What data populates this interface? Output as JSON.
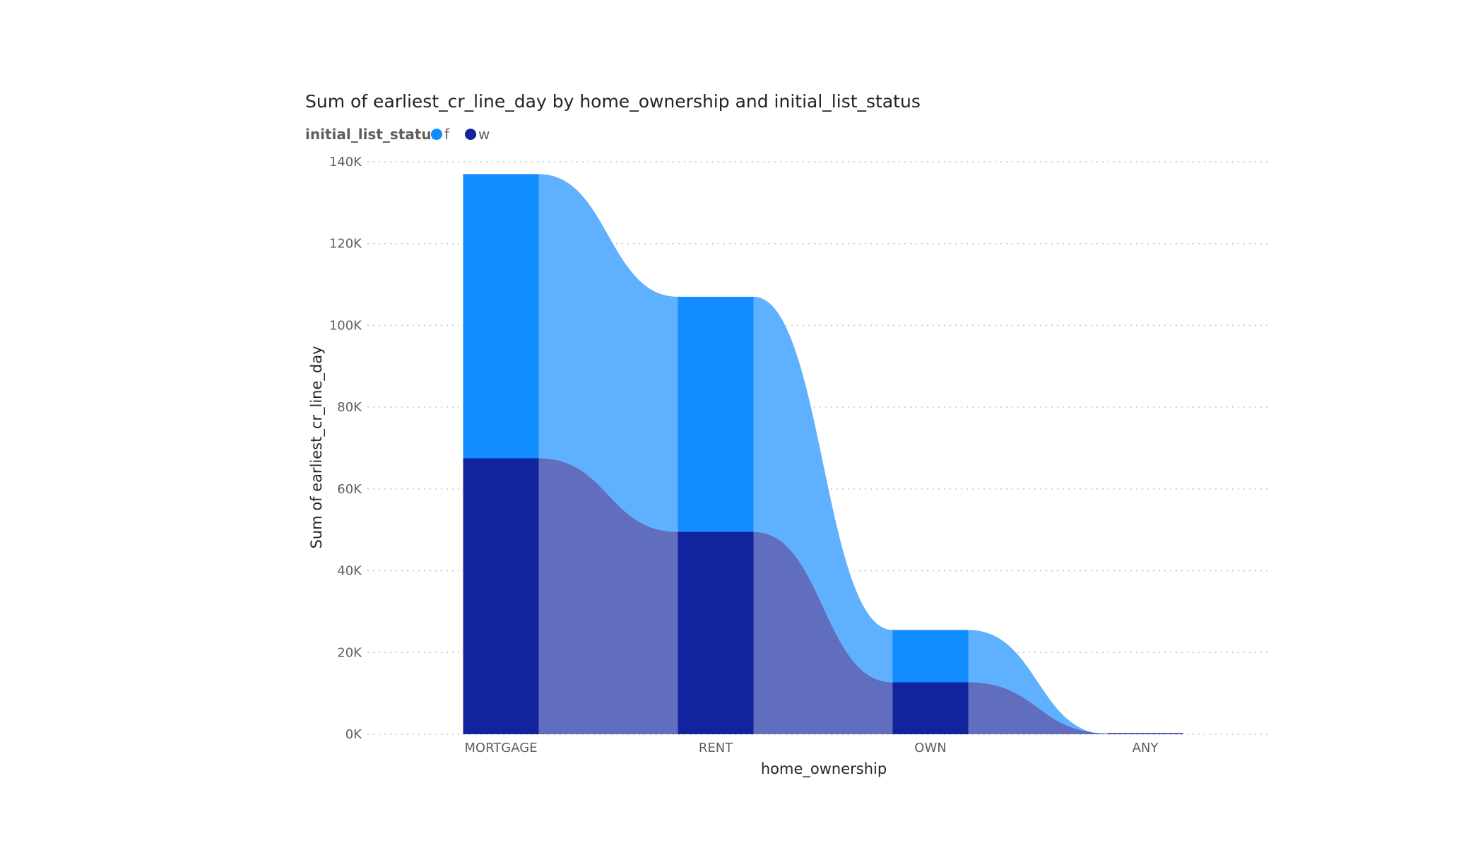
{
  "chart_data": {
    "type": "ribbon",
    "title": "Sum of earliest_cr_line_day by home_ownership and initial_list_status",
    "legend": {
      "title": "initial_list_status",
      "position": "top-left"
    },
    "xlabel": "home_ownership",
    "ylabel": "Sum of earliest_cr_line_day",
    "categories": [
      "MORTGAGE",
      "RENT",
      "OWN",
      "ANY"
    ],
    "series": [
      {
        "name": "f",
        "color": "#118dff",
        "ribbon_color": "#56acff",
        "values": [
          69500,
          57500,
          12800,
          0
        ]
      },
      {
        "name": "w",
        "color": "#12239e",
        "ribbon_color": "#5966bb",
        "values": [
          67500,
          49500,
          12700,
          200
        ]
      }
    ],
    "ylim": [
      0,
      140000
    ],
    "yticks": [
      {
        "value": 0,
        "label": "0K"
      },
      {
        "value": 20000,
        "label": "20K"
      },
      {
        "value": 40000,
        "label": "40K"
      },
      {
        "value": 60000,
        "label": "60K"
      },
      {
        "value": 80000,
        "label": "80K"
      },
      {
        "value": 100000,
        "label": "100K"
      },
      {
        "value": 120000,
        "label": "120K"
      },
      {
        "value": 140000,
        "label": "140K"
      }
    ],
    "grid": true
  }
}
